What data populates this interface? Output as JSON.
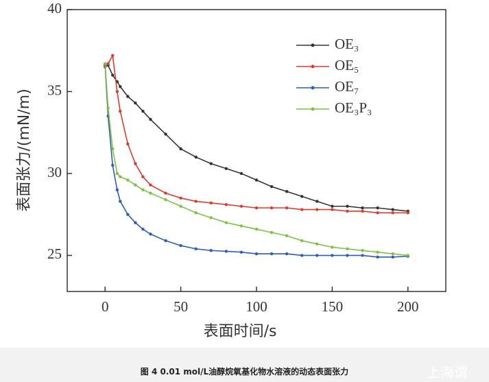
{
  "chart_data": {
    "type": "line",
    "xlabel": "表面时间/s",
    "ylabel": "表面张力/(mN/m)",
    "x": [
      0,
      2,
      5,
      8,
      10,
      15,
      20,
      25,
      30,
      40,
      50,
      60,
      70,
      80,
      90,
      100,
      110,
      120,
      130,
      140,
      150,
      160,
      170,
      180,
      190,
      200
    ],
    "series": [
      {
        "name": "OE₃",
        "color": "#333333",
        "values": [
          36.6,
          36.6,
          36.0,
          35.6,
          35.3,
          34.7,
          34.3,
          33.8,
          33.3,
          32.4,
          31.5,
          31.0,
          30.6,
          30.3,
          30.0,
          29.6,
          29.2,
          28.9,
          28.6,
          28.3,
          28.0,
          28.0,
          27.9,
          27.9,
          27.8,
          27.7
        ]
      },
      {
        "name": "OE₅",
        "color": "#e0392b",
        "values": [
          36.5,
          36.7,
          37.2,
          35.0,
          33.8,
          31.8,
          30.6,
          29.8,
          29.3,
          28.8,
          28.5,
          28.3,
          28.2,
          28.1,
          28.0,
          27.9,
          27.9,
          27.9,
          27.8,
          27.8,
          27.8,
          27.7,
          27.7,
          27.6,
          27.6,
          27.6
        ]
      },
      {
        "name": "OE₇",
        "color": "#2a5cb8",
        "values": [
          36.6,
          33.5,
          30.5,
          29.0,
          28.3,
          27.5,
          27.0,
          26.6,
          26.3,
          25.9,
          25.6,
          25.4,
          25.3,
          25.25,
          25.2,
          25.1,
          25.1,
          25.1,
          25.0,
          25.0,
          25.0,
          25.0,
          25.0,
          24.9,
          24.9,
          24.95
        ]
      },
      {
        "name": "OE₃P₃",
        "color": "#7dc142",
        "values": [
          36.7,
          34.0,
          31.5,
          30.0,
          29.8,
          29.6,
          29.3,
          29.0,
          28.8,
          28.4,
          28.0,
          27.6,
          27.3,
          27.0,
          26.8,
          26.6,
          26.4,
          26.2,
          25.9,
          25.7,
          25.5,
          25.4,
          25.3,
          25.2,
          25.1,
          25.0
        ]
      }
    ],
    "xlim": [
      -25,
      225
    ],
    "ylim": [
      22.8,
      40
    ],
    "xticks": [
      0,
      50,
      100,
      150,
      200
    ],
    "yticks": [
      25,
      30,
      35,
      40
    ],
    "legend": "upper-right",
    "grid": false
  },
  "caption": "图 4   0.01 mol/L油醇烷氧基化物水溶液的动态表面张力",
  "watermark": "上海谓"
}
